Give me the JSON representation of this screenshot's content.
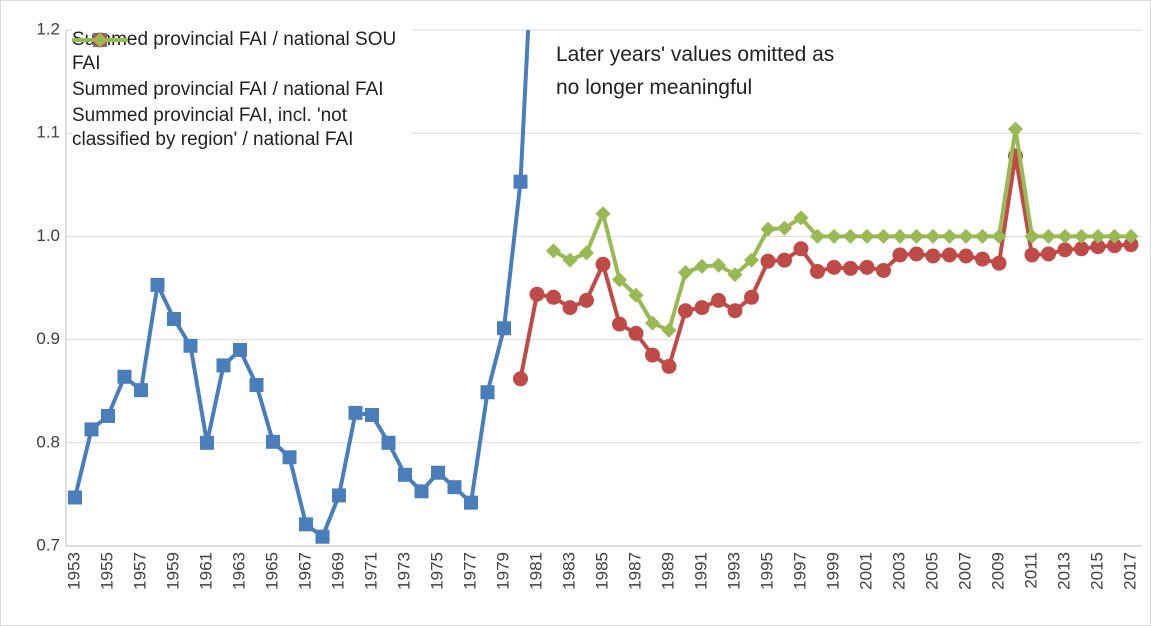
{
  "chart_data": {
    "type": "line",
    "categories": [
      "1953",
      null,
      "1955",
      null,
      "1957",
      null,
      "1959",
      null,
      "1961",
      null,
      "1963",
      null,
      "1965",
      null,
      "1967",
      null,
      "1969",
      null,
      "1971",
      null,
      "1973",
      null,
      "1975",
      null,
      "1977",
      null,
      "1979",
      null,
      "1981",
      null,
      "1983",
      null,
      "1985",
      null,
      "1987",
      null,
      "1989",
      null,
      "1991",
      null,
      "1993",
      null,
      "1995",
      null,
      "1997",
      null,
      "1999",
      null,
      "2001",
      null,
      "2003",
      null,
      "2005",
      null,
      "2007",
      null,
      "2009",
      null,
      "2011",
      null,
      "2013",
      null,
      "2015",
      null,
      "2017"
    ],
    "series": [
      {
        "name": "Summed provincial FAI / national SOU FAI",
        "color": "#4a7ebb",
        "marker": "square",
        "values": [
          0.747,
          0.813,
          0.826,
          0.864,
          0.851,
          0.953,
          0.92,
          0.894,
          0.8,
          0.875,
          0.89,
          0.856,
          0.801,
          0.786,
          0.721,
          0.709,
          0.749,
          0.829,
          0.827,
          0.8,
          0.769,
          0.753,
          0.771,
          0.757,
          0.742,
          0.849,
          0.911,
          1.053,
          1.37,
          null,
          null,
          null,
          null,
          null,
          null,
          null,
          null,
          null,
          null,
          null,
          null,
          null,
          null,
          null,
          null,
          null,
          null,
          null,
          null,
          null,
          null,
          null,
          null,
          null,
          null,
          null,
          null,
          null,
          null,
          null,
          null,
          null,
          null,
          null,
          null
        ]
      },
      {
        "name": "Summed provincial FAI / national FAI",
        "color": "#be4b48",
        "marker": "circle",
        "values": [
          null,
          null,
          null,
          null,
          null,
          null,
          null,
          null,
          null,
          null,
          null,
          null,
          null,
          null,
          null,
          null,
          null,
          null,
          null,
          null,
          null,
          null,
          null,
          null,
          null,
          null,
          null,
          0.862,
          0.944,
          0.941,
          0.931,
          0.938,
          0.973,
          0.915,
          0.906,
          0.885,
          0.874,
          0.928,
          0.931,
          0.938,
          0.928,
          0.941,
          0.976,
          0.977,
          0.988,
          0.966,
          0.97,
          0.969,
          0.97,
          0.967,
          0.982,
          0.983,
          0.981,
          0.982,
          0.981,
          0.978,
          0.974,
          1.078,
          0.982,
          0.983,
          0.987,
          0.988,
          0.99,
          0.991,
          0.992
        ]
      },
      {
        "name": "Summed provincial FAI, incl. 'not classified by region' / national FAI",
        "color": "#98b954",
        "marker": "diamond",
        "values": [
          null,
          null,
          null,
          null,
          null,
          null,
          null,
          null,
          null,
          null,
          null,
          null,
          null,
          null,
          null,
          null,
          null,
          null,
          null,
          null,
          null,
          null,
          null,
          null,
          null,
          null,
          null,
          null,
          null,
          0.986,
          0.977,
          0.984,
          1.022,
          0.958,
          0.943,
          0.916,
          0.909,
          0.965,
          0.971,
          0.972,
          0.963,
          0.977,
          1.007,
          1.008,
          1.018,
          1.0,
          1.0,
          1.0,
          1.0,
          1.0,
          1.0,
          1.0,
          1.0,
          1.0,
          1.0,
          1.0,
          1.0,
          1.104,
          1.0,
          1.0,
          1.0,
          1.0,
          1.0,
          1.0,
          1.0
        ]
      }
    ],
    "annotation": [
      "Later years' values omitted as",
      "no longer meaningful"
    ],
    "ylim": [
      0.7,
      1.2
    ],
    "yticks": [
      0.7,
      0.8,
      0.9,
      {
        "value": 1,
        "label": "1.0"
      },
      1.1,
      1.2
    ],
    "grid": true
  }
}
